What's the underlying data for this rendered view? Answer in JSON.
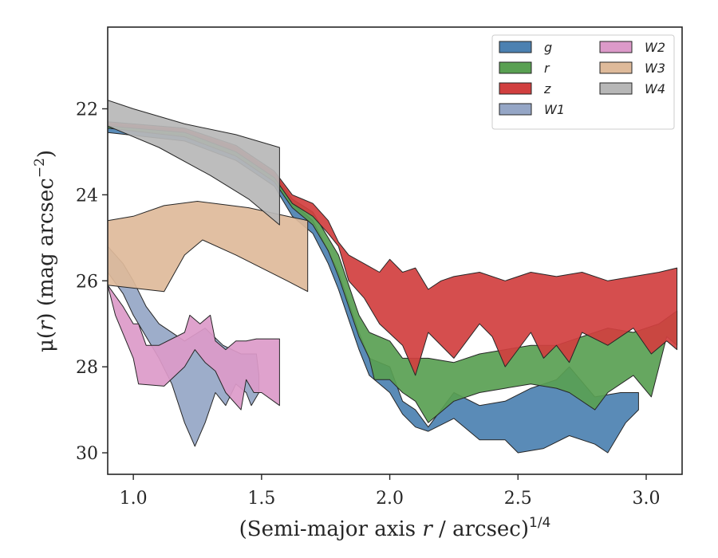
{
  "chart_data": {
    "type": "area",
    "xlabel_main": "(Semi-major axis ",
    "xlabel_var": "r",
    "xlabel_unit": " / arcsec)",
    "xlabel_exp": "1/4",
    "ylabel_main": "μ(",
    "ylabel_var": "r",
    "ylabel_rest": ") (mag arcsec",
    "ylabel_exp": "−2",
    "ylabel_close": ")",
    "xlim": [
      0.9,
      3.14
    ],
    "ylim": [
      20.1,
      30.5
    ],
    "y_inverted": true,
    "x_ticks": [
      1.0,
      1.5,
      2.0,
      2.5,
      3.0
    ],
    "x_tick_labels": [
      "1.0",
      "1.5",
      "2.0",
      "2.5",
      "3.0"
    ],
    "y_ticks": [
      22,
      24,
      26,
      28,
      30
    ],
    "y_tick_labels": [
      "22",
      "24",
      "26",
      "28",
      "30"
    ],
    "grid": false,
    "legend_position": "top-right",
    "legend_columns": 2,
    "series": [
      {
        "name": "g",
        "color": "#4c81b1",
        "upper": [
          [
            0.9,
            22.45
          ],
          [
            1.2,
            22.6
          ],
          [
            1.4,
            23.0
          ],
          [
            1.55,
            23.6
          ],
          [
            1.62,
            24.2
          ],
          [
            1.7,
            24.6
          ],
          [
            1.76,
            25.3
          ],
          [
            1.8,
            25.8
          ],
          [
            1.84,
            26.5
          ],
          [
            1.88,
            27.2
          ],
          [
            1.92,
            27.8
          ],
          [
            2.0,
            28.0
          ],
          [
            2.05,
            28.8
          ],
          [
            2.1,
            29.0
          ],
          [
            2.15,
            29.4
          ],
          [
            2.25,
            28.6
          ],
          [
            2.35,
            28.9
          ],
          [
            2.45,
            28.8
          ],
          [
            2.55,
            28.5
          ],
          [
            2.65,
            28.3
          ],
          [
            2.7,
            28.0
          ],
          [
            2.8,
            28.7
          ],
          [
            2.9,
            28.6
          ],
          [
            2.97,
            28.6
          ]
        ],
        "lower": [
          [
            0.9,
            22.55
          ],
          [
            1.2,
            22.75
          ],
          [
            1.4,
            23.2
          ],
          [
            1.55,
            23.8
          ],
          [
            1.62,
            24.5
          ],
          [
            1.7,
            24.9
          ],
          [
            1.76,
            25.6
          ],
          [
            1.8,
            26.2
          ],
          [
            1.84,
            26.9
          ],
          [
            1.88,
            27.6
          ],
          [
            1.92,
            28.2
          ],
          [
            2.0,
            28.6
          ],
          [
            2.05,
            29.1
          ],
          [
            2.1,
            29.4
          ],
          [
            2.15,
            29.5
          ],
          [
            2.25,
            29.2
          ],
          [
            2.35,
            29.7
          ],
          [
            2.45,
            29.7
          ],
          [
            2.5,
            30.0
          ],
          [
            2.6,
            29.9
          ],
          [
            2.7,
            29.6
          ],
          [
            2.8,
            29.8
          ],
          [
            2.85,
            30.0
          ],
          [
            2.92,
            29.3
          ],
          [
            2.97,
            29.0
          ]
        ]
      },
      {
        "name": "r",
        "color": "#59a052",
        "upper": [
          [
            0.9,
            22.35
          ],
          [
            1.2,
            22.5
          ],
          [
            1.4,
            22.9
          ],
          [
            1.55,
            23.5
          ],
          [
            1.62,
            24.1
          ],
          [
            1.7,
            24.4
          ],
          [
            1.76,
            25.0
          ],
          [
            1.8,
            25.4
          ],
          [
            1.84,
            26.1
          ],
          [
            1.88,
            26.8
          ],
          [
            1.92,
            27.2
          ],
          [
            2.0,
            27.4
          ],
          [
            2.05,
            27.8
          ],
          [
            2.15,
            27.8
          ],
          [
            2.25,
            27.9
          ],
          [
            2.35,
            27.7
          ],
          [
            2.45,
            27.6
          ],
          [
            2.55,
            27.5
          ],
          [
            2.65,
            27.5
          ],
          [
            2.75,
            27.3
          ],
          [
            2.85,
            27.1
          ],
          [
            2.95,
            27.2
          ],
          [
            3.05,
            27.0
          ],
          [
            3.12,
            26.7
          ]
        ],
        "lower": [
          [
            0.9,
            22.45
          ],
          [
            1.2,
            22.65
          ],
          [
            1.4,
            23.1
          ],
          [
            1.55,
            23.7
          ],
          [
            1.62,
            24.3
          ],
          [
            1.7,
            24.7
          ],
          [
            1.76,
            25.3
          ],
          [
            1.8,
            25.9
          ],
          [
            1.84,
            26.6
          ],
          [
            1.88,
            27.3
          ],
          [
            1.92,
            27.8
          ],
          [
            1.94,
            28.3
          ],
          [
            2.0,
            28.3
          ],
          [
            2.05,
            28.6
          ],
          [
            2.1,
            28.8
          ],
          [
            2.15,
            29.3
          ],
          [
            2.25,
            28.8
          ],
          [
            2.35,
            28.6
          ],
          [
            2.45,
            28.5
          ],
          [
            2.55,
            28.4
          ],
          [
            2.65,
            28.5
          ],
          [
            2.7,
            28.6
          ],
          [
            2.8,
            29.0
          ],
          [
            2.85,
            28.6
          ],
          [
            2.95,
            28.2
          ],
          [
            3.02,
            28.7
          ],
          [
            3.08,
            27.3
          ],
          [
            3.12,
            27.5
          ]
        ]
      },
      {
        "name": "z",
        "color": "#d13f3f",
        "upper": [
          [
            0.9,
            22.3
          ],
          [
            1.2,
            22.45
          ],
          [
            1.4,
            22.85
          ],
          [
            1.55,
            23.45
          ],
          [
            1.62,
            24.0
          ],
          [
            1.7,
            24.2
          ],
          [
            1.76,
            24.6
          ],
          [
            1.8,
            25.1
          ],
          [
            1.84,
            25.4
          ],
          [
            1.9,
            25.6
          ],
          [
            1.96,
            25.8
          ],
          [
            2.0,
            25.5
          ],
          [
            2.05,
            25.8
          ],
          [
            2.1,
            25.7
          ],
          [
            2.15,
            26.2
          ],
          [
            2.2,
            26.0
          ],
          [
            2.25,
            25.9
          ],
          [
            2.35,
            25.8
          ],
          [
            2.45,
            26.0
          ],
          [
            2.55,
            25.8
          ],
          [
            2.65,
            25.9
          ],
          [
            2.75,
            25.8
          ],
          [
            2.85,
            26.0
          ],
          [
            2.95,
            25.9
          ],
          [
            3.05,
            25.8
          ],
          [
            3.12,
            25.7
          ]
        ],
        "lower": [
          [
            0.9,
            22.4
          ],
          [
            1.2,
            22.55
          ],
          [
            1.4,
            23.0
          ],
          [
            1.55,
            23.6
          ],
          [
            1.62,
            24.2
          ],
          [
            1.7,
            24.5
          ],
          [
            1.76,
            24.9
          ],
          [
            1.8,
            25.2
          ],
          [
            1.84,
            26.0
          ],
          [
            1.9,
            26.4
          ],
          [
            1.96,
            27.0
          ],
          [
            2.05,
            27.5
          ],
          [
            2.1,
            28.2
          ],
          [
            2.15,
            27.2
          ],
          [
            2.25,
            27.8
          ],
          [
            2.35,
            27.0
          ],
          [
            2.4,
            27.3
          ],
          [
            2.45,
            28.0
          ],
          [
            2.55,
            27.2
          ],
          [
            2.6,
            27.8
          ],
          [
            2.65,
            27.5
          ],
          [
            2.7,
            27.9
          ],
          [
            2.75,
            27.2
          ],
          [
            2.85,
            27.5
          ],
          [
            2.95,
            27.1
          ],
          [
            3.02,
            27.7
          ],
          [
            3.08,
            27.4
          ],
          [
            3.12,
            27.6
          ]
        ]
      },
      {
        "name": "W1",
        "color": "#95a6c6",
        "upper": [
          [
            0.9,
            25.2
          ],
          [
            0.96,
            25.6
          ],
          [
            1.0,
            26.0
          ],
          [
            1.05,
            26.6
          ],
          [
            1.1,
            27.0
          ],
          [
            1.2,
            27.4
          ],
          [
            1.28,
            27.1
          ],
          [
            1.35,
            27.5
          ],
          [
            1.42,
            27.7
          ],
          [
            1.48,
            27.7
          ],
          [
            1.49,
            28.2
          ]
        ],
        "lower": [
          [
            0.9,
            25.8
          ],
          [
            0.96,
            26.3
          ],
          [
            1.0,
            26.8
          ],
          [
            1.05,
            27.3
          ],
          [
            1.1,
            27.8
          ],
          [
            1.15,
            28.4
          ],
          [
            1.2,
            29.3
          ],
          [
            1.24,
            29.85
          ],
          [
            1.28,
            29.3
          ],
          [
            1.32,
            28.6
          ],
          [
            1.36,
            28.9
          ],
          [
            1.4,
            28.4
          ],
          [
            1.44,
            28.6
          ],
          [
            1.46,
            28.9
          ],
          [
            1.49,
            28.6
          ]
        ]
      },
      {
        "name": "W2",
        "color": "#dc9ac9",
        "upper": [
          [
            0.9,
            26.1
          ],
          [
            0.96,
            26.6
          ],
          [
            1.0,
            27.0
          ],
          [
            1.02,
            27.0
          ],
          [
            1.05,
            27.5
          ],
          [
            1.1,
            27.5
          ],
          [
            1.2,
            27.2
          ],
          [
            1.22,
            26.8
          ],
          [
            1.26,
            27.0
          ],
          [
            1.3,
            26.8
          ],
          [
            1.32,
            27.4
          ],
          [
            1.36,
            27.6
          ],
          [
            1.4,
            27.4
          ],
          [
            1.44,
            27.4
          ],
          [
            1.48,
            27.35
          ],
          [
            1.57,
            27.35
          ]
        ],
        "lower": [
          [
            0.9,
            26.1
          ],
          [
            0.93,
            26.8
          ],
          [
            1.0,
            27.8
          ],
          [
            1.02,
            28.4
          ],
          [
            1.12,
            28.45
          ],
          [
            1.2,
            28.0
          ],
          [
            1.24,
            27.6
          ],
          [
            1.28,
            27.9
          ],
          [
            1.32,
            28.1
          ],
          [
            1.36,
            28.6
          ],
          [
            1.42,
            29.0
          ],
          [
            1.44,
            28.3
          ],
          [
            1.47,
            28.6
          ],
          [
            1.5,
            28.6
          ],
          [
            1.57,
            28.9
          ]
        ]
      },
      {
        "name": "W3",
        "color": "#deba9a",
        "upper": [
          [
            0.9,
            24.6
          ],
          [
            1.0,
            24.5
          ],
          [
            1.12,
            24.25
          ],
          [
            1.25,
            24.15
          ],
          [
            1.45,
            24.3
          ],
          [
            1.6,
            24.5
          ],
          [
            1.68,
            24.6
          ]
        ],
        "lower": [
          [
            0.9,
            26.1
          ],
          [
            1.12,
            26.25
          ],
          [
            1.2,
            25.4
          ],
          [
            1.27,
            25.05
          ],
          [
            1.4,
            25.4
          ],
          [
            1.6,
            26.0
          ],
          [
            1.68,
            26.25
          ]
        ]
      },
      {
        "name": "W4",
        "color": "#b7b7b7",
        "upper": [
          [
            0.9,
            21.8
          ],
          [
            1.0,
            22.0
          ],
          [
            1.2,
            22.35
          ],
          [
            1.4,
            22.6
          ],
          [
            1.57,
            22.9
          ]
        ],
        "lower": [
          [
            0.9,
            22.4
          ],
          [
            1.1,
            22.9
          ],
          [
            1.3,
            23.55
          ],
          [
            1.45,
            24.1
          ],
          [
            1.57,
            24.7
          ]
        ]
      }
    ]
  }
}
